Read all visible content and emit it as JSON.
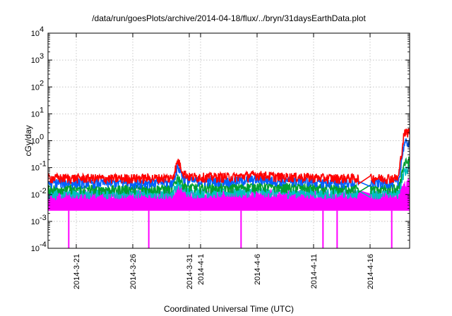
{
  "chart_data": {
    "type": "line",
    "title": "/data/run/goesPlots/archive/2014-04-18/flux/../bryn/31daysEarthData.plot",
    "xlabel": "Coordinated Universal Time (UTC)",
    "ylabel": "cGy/day",
    "y_scale": "log",
    "ylim": [
      0.0001,
      10000
    ],
    "xlim": [
      "2014-03-18T12:00",
      "2014-04-19T12:00"
    ],
    "grid": true,
    "y_ticks": [
      {
        "base": "10",
        "exp": "-4"
      },
      {
        "base": "10",
        "exp": "-3"
      },
      {
        "base": "10",
        "exp": "-2"
      },
      {
        "base": "10",
        "exp": "-1"
      },
      {
        "base": "10",
        "exp": "0"
      },
      {
        "base": "10",
        "exp": "1"
      },
      {
        "base": "10",
        "exp": "2"
      },
      {
        "base": "10",
        "exp": "3"
      },
      {
        "base": "10",
        "exp": "4"
      }
    ],
    "x_ticks": [
      "2014-3-21",
      "2014-3-26",
      "2014-3-31",
      "2014-4-1",
      "2014-4-6",
      "2014-4-11",
      "2014-4-16"
    ],
    "x_tick_dates": [
      "2014-03-21",
      "2014-03-26",
      "2014-03-31",
      "2014-04-01",
      "2014-04-06",
      "2014-04-11",
      "2014-04-16"
    ],
    "series_colors": [
      "#ff0000",
      "#0060ff",
      "#00a030",
      "#00c0c0",
      "#ff00ff"
    ],
    "series": [
      {
        "color": "#ff0000",
        "x": [
          "2014-03-18T12:00",
          "2014-03-20",
          "2014-03-22",
          "2014-03-24",
          "2014-03-26",
          "2014-03-28",
          "2014-03-29T12:00",
          "2014-03-30",
          "2014-03-30T12:00",
          "2014-03-31",
          "2014-04-02",
          "2014-04-04",
          "2014-04-06",
          "2014-04-08",
          "2014-04-10",
          "2014-04-12",
          "2014-04-14",
          "2014-04-15",
          "2014-04-15T12:00",
          "2014-04-16",
          "2014-04-17",
          "2014-04-18",
          "2014-04-18T12:00",
          "2014-04-19",
          "2014-04-19T12:00"
        ],
        "y": [
          0.045,
          0.045,
          0.045,
          0.043,
          0.045,
          0.045,
          0.045,
          0.2,
          0.07,
          0.05,
          0.05,
          0.05,
          0.06,
          0.05,
          0.05,
          0.045,
          0.045,
          0.045,
          0.02,
          0.045,
          0.045,
          0.045,
          0.045,
          2.0,
          2.5
        ]
      },
      {
        "color": "#0060ff",
        "x": [
          "2014-03-18T12:00",
          "2014-03-20",
          "2014-03-22",
          "2014-03-24",
          "2014-03-26",
          "2014-03-28",
          "2014-03-29T12:00",
          "2014-03-30",
          "2014-03-30T12:00",
          "2014-03-31",
          "2014-04-02",
          "2014-04-04",
          "2014-04-06",
          "2014-04-08",
          "2014-04-10",
          "2014-04-12",
          "2014-04-14",
          "2014-04-15",
          "2014-04-15T12:00",
          "2014-04-16",
          "2014-04-17",
          "2014-04-18",
          "2014-04-18T12:00",
          "2014-04-19",
          "2014-04-19T12:00"
        ],
        "y": [
          0.03,
          0.03,
          0.03,
          0.03,
          0.03,
          0.03,
          0.03,
          0.12,
          0.045,
          0.035,
          0.035,
          0.035,
          0.04,
          0.035,
          0.035,
          0.03,
          0.03,
          0.03,
          0.012,
          0.03,
          0.03,
          0.03,
          0.03,
          0.8,
          1.0
        ]
      },
      {
        "color": "#00a030",
        "x": [
          "2014-03-18T12:00",
          "2014-03-20",
          "2014-03-22",
          "2014-03-24",
          "2014-03-26",
          "2014-03-28",
          "2014-03-29T12:00",
          "2014-03-30",
          "2014-03-30T12:00",
          "2014-03-31",
          "2014-04-02",
          "2014-04-04",
          "2014-04-06",
          "2014-04-08",
          "2014-04-10",
          "2014-04-12",
          "2014-04-14",
          "2014-04-15",
          "2014-04-15T12:00",
          "2014-04-16",
          "2014-04-17",
          "2014-04-18",
          "2014-04-18T12:00",
          "2014-04-19",
          "2014-04-19T12:00"
        ],
        "y": [
          0.018,
          0.018,
          0.018,
          0.017,
          0.018,
          0.018,
          0.018,
          0.05,
          0.025,
          0.02,
          0.02,
          0.02,
          0.022,
          0.02,
          0.02,
          0.018,
          0.018,
          0.018,
          0.008,
          0.018,
          0.018,
          0.018,
          0.018,
          0.15,
          0.2
        ]
      },
      {
        "color": "#00c0c0",
        "x": [
          "2014-03-18T12:00",
          "2014-03-20",
          "2014-03-22",
          "2014-03-24",
          "2014-03-26",
          "2014-03-28",
          "2014-03-29T12:00",
          "2014-03-30",
          "2014-03-30T12:00",
          "2014-03-31",
          "2014-04-02",
          "2014-04-04",
          "2014-04-06",
          "2014-04-08",
          "2014-04-10",
          "2014-04-12",
          "2014-04-14",
          "2014-04-15",
          "2014-04-15T12:00",
          "2014-04-16",
          "2014-04-17",
          "2014-04-18",
          "2014-04-18T12:00",
          "2014-04-19",
          "2014-04-19T12:00"
        ],
        "y": [
          0.012,
          0.012,
          0.012,
          0.012,
          0.012,
          0.012,
          0.012,
          0.03,
          0.016,
          0.013,
          0.013,
          0.013,
          0.014,
          0.013,
          0.013,
          0.012,
          0.012,
          0.012,
          0.006,
          0.012,
          0.012,
          0.012,
          0.012,
          0.08,
          0.1
        ]
      },
      {
        "color": "#ff00ff",
        "x": [
          "2014-03-18T12:00",
          "2014-03-20",
          "2014-03-22",
          "2014-03-24",
          "2014-03-26",
          "2014-03-28",
          "2014-03-29T12:00",
          "2014-03-30",
          "2014-03-30T12:00",
          "2014-03-31",
          "2014-04-02",
          "2014-04-04",
          "2014-04-06",
          "2014-04-08",
          "2014-04-10",
          "2014-04-12",
          "2014-04-14",
          "2014-04-15",
          "2014-04-15T12:00",
          "2014-04-16",
          "2014-04-17",
          "2014-04-18",
          "2014-04-18T12:00",
          "2014-04-19",
          "2014-04-19T12:00"
        ],
        "y": [
          0.01,
          0.01,
          0.01,
          0.01,
          0.01,
          0.01,
          0.01,
          0.015,
          0.012,
          0.01,
          0.01,
          0.01,
          0.011,
          0.01,
          0.01,
          0.01,
          0.01,
          0.01,
          0.005,
          0.01,
          0.01,
          0.01,
          0.01,
          0.02,
          0.03
        ]
      }
    ],
    "magenta_floor": 0.0025,
    "magenta_dropouts": [
      "2014-03-20T08:00",
      "2014-03-27T10:00",
      "2014-04-04T14:00",
      "2014-04-11T20:00",
      "2014-04-13T02:00",
      "2014-04-17T22:00"
    ]
  }
}
